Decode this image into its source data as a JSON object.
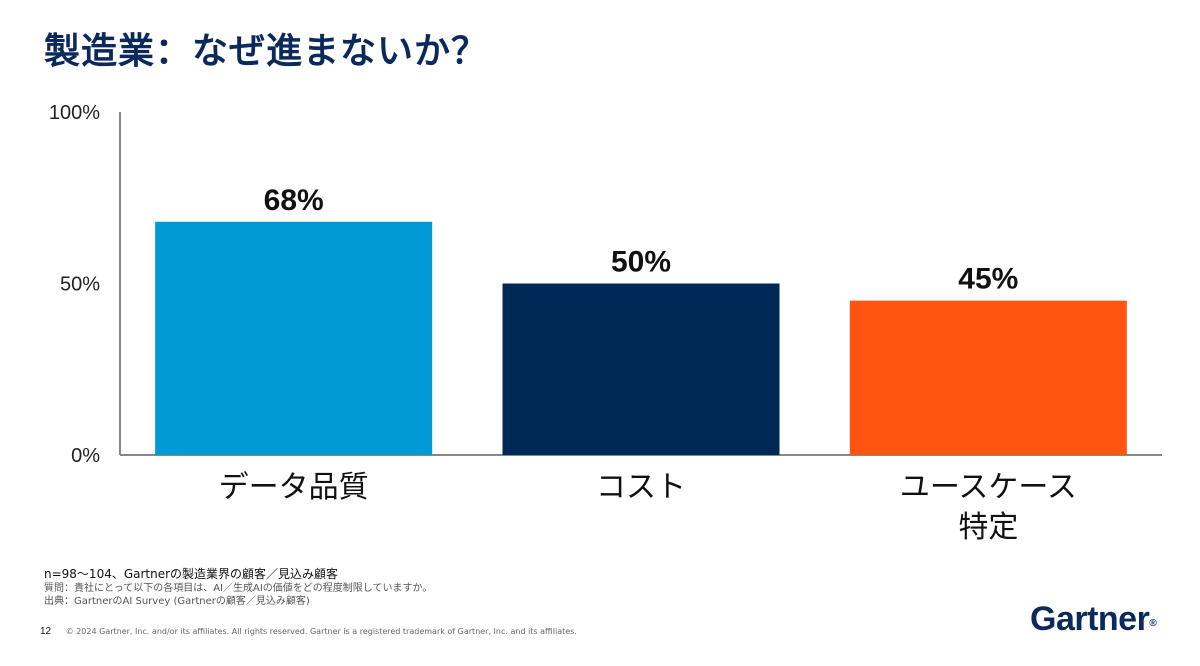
{
  "title": "製造業：なぜ進まないか？",
  "chart_data": {
    "type": "bar",
    "categories": [
      "データ品質",
      "コスト",
      "ユースケース特定"
    ],
    "category_lines": [
      [
        "データ品質"
      ],
      [
        "コスト"
      ],
      [
        "ユースケース",
        "特定"
      ]
    ],
    "values": [
      68,
      50,
      45
    ],
    "data_labels": [
      "68%",
      "50%",
      "45%"
    ],
    "y_ticks": [
      "0%",
      "50%",
      "100%"
    ],
    "ylim": [
      0,
      100
    ],
    "grid": false,
    "colors": [
      "#0099d6",
      "#002856",
      "#ff5510"
    ]
  },
  "notes": {
    "sample": "n=98～104、Gartnerの製造業界の顧客／見込み顧客",
    "question": "質問：貴社にとって以下の各項目は、AI／生成AIの価値をどの程度制限していますか。",
    "source": "出典：GartnerのAI Survey (Gartnerの顧客／見込み顧客)"
  },
  "footer": {
    "page": "12",
    "copyright": "© 2024 Gartner, Inc. and/or its affiliates. All rights reserved. Gartner is a registered trademark of Gartner, Inc. and its affiliates."
  },
  "logo": {
    "text": "Gartner",
    "mark": "®"
  }
}
